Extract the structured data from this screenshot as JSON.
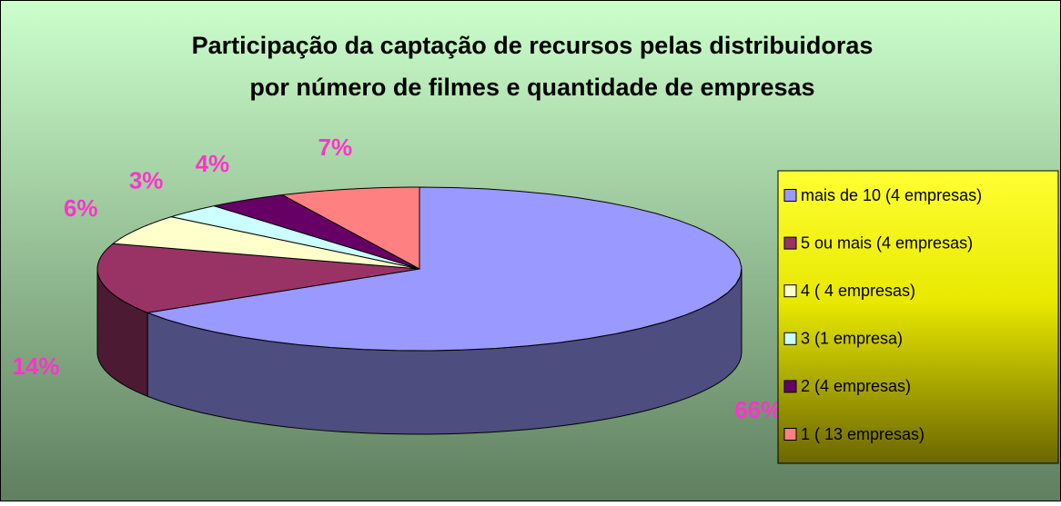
{
  "chart_data": {
    "type": "pie",
    "title": [
      "Participação da captação de recursos pelas distribuidoras",
      "por número de filmes e quantidade de empresas"
    ],
    "categories": [
      "mais de 10 (4 empresas)",
      "5 ou mais (4 empresas)",
      "4 ( 4 empresas)",
      "3 (1 empresa)",
      "2 (4 empresas)",
      "1 ( 13 empresas)"
    ],
    "values": [
      66,
      14,
      6,
      3,
      4,
      7
    ],
    "value_labels": [
      "66%",
      "14%",
      "6%",
      "3%",
      "4%",
      "7%"
    ],
    "colors": [
      "#9999ff",
      "#993366",
      "#ffffcc",
      "#ccffff",
      "#660066",
      "#ff8080"
    ],
    "legend": "right"
  }
}
